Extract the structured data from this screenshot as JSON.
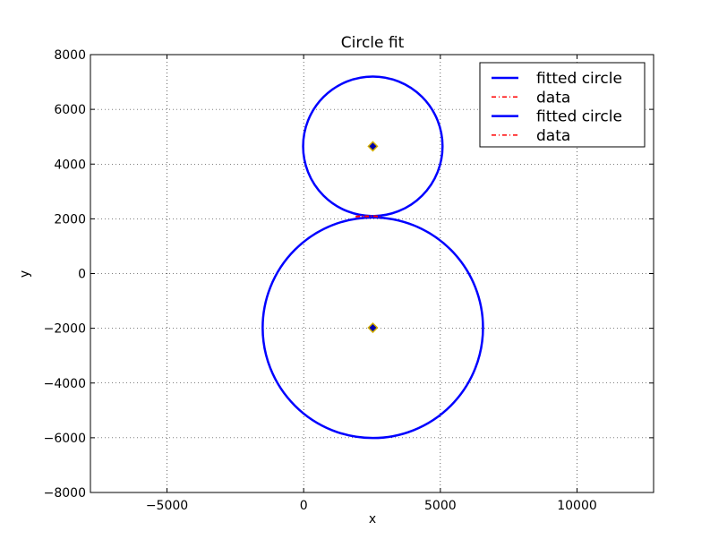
{
  "chart_data": {
    "type": "scatter",
    "title": "Circle fit",
    "xlabel": "x",
    "ylabel": "y",
    "xlim": [
      -7800,
      12800
    ],
    "ylim": [
      -8000,
      8000
    ],
    "xticks": [
      -5000,
      0,
      5000,
      10000
    ],
    "xtick_labels": [
      "−5000",
      "0",
      "5000",
      "10000"
    ],
    "yticks": [
      -8000,
      -6000,
      -4000,
      -2000,
      0,
      2000,
      4000,
      6000,
      8000
    ],
    "ytick_labels": [
      "−8000",
      "−6000",
      "−4000",
      "−2000",
      "0",
      "2000",
      "4000",
      "6000",
      "8000"
    ],
    "grid": true,
    "legend_position": "top-right",
    "legend": [
      {
        "label": "fitted circle",
        "style": "solid",
        "color": "#0000ff"
      },
      {
        "label": "data",
        "style": "dashdot",
        "color": "#ff0000"
      },
      {
        "label": "fitted circle",
        "style": "solid",
        "color": "#0000ff"
      },
      {
        "label": "data",
        "style": "dashdot",
        "color": "#ff0000"
      }
    ],
    "circles": [
      {
        "name": "fitted circle",
        "center": [
          2530,
          4650
        ],
        "radius": 2550,
        "color": "#0000ff"
      },
      {
        "name": "fitted circle",
        "center": [
          2530,
          -1980
        ],
        "radius": 4030,
        "color": "#0000ff"
      }
    ],
    "centers": [
      {
        "x": 2530,
        "y": 4650
      },
      {
        "x": 2530,
        "y": -1980
      }
    ],
    "data_series": [
      {
        "name": "data",
        "color": "#ff0000",
        "x": [
          1900,
          2000,
          2100,
          2200,
          2300,
          2400,
          2500,
          2600,
          2700,
          2800
        ],
        "y": [
          2080,
          2090,
          2100,
          2085,
          2095,
          2090,
          2100,
          2095,
          2085,
          2080
        ]
      }
    ]
  }
}
